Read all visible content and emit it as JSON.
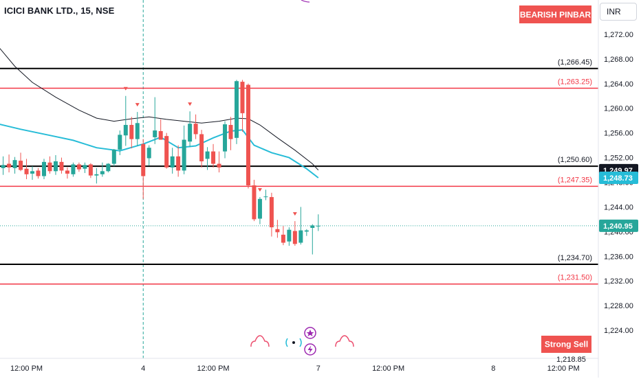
{
  "header": {
    "symbol": "ICICI BANK LTD., 15, NSE",
    "currency": "INR"
  },
  "signals": {
    "bearish_pinbar": "BEARISH PINBAR",
    "strong_sell": "Strong Sell"
  },
  "colors": {
    "up": "#26a69a",
    "down": "#ef5350",
    "fast_ma": "#26bcd7",
    "slow_ma": "#131722",
    "support_line": "#000000",
    "resistance_line": "#f23645",
    "marker_pink": "#ec4f6f",
    "marker_purple": "#9c27b0"
  },
  "chart_data": {
    "type": "candlestick",
    "title": "ICICI BANK LTD., 15, NSE",
    "ylim": [
      1218,
      1276
    ],
    "y_ticks": [
      "1,224.00",
      "1,228.00",
      "1,232.00",
      "1,236.00",
      "1,240.00",
      "1,244.00",
      "1,248.00",
      "1,252.00",
      "1,256.00",
      "1,260.00",
      "1,264.00",
      "1,268.00",
      "1,272.00"
    ],
    "bottom_partial_tick": "1,218.85",
    "x_ticks": [
      {
        "label": "12:00 PM",
        "bar": 4
      },
      {
        "label": "4",
        "bar": 24
      },
      {
        "label": "12:00 PM",
        "bar": 36
      },
      {
        "label": "7",
        "bar": 54
      },
      {
        "label": "12:00 PM",
        "bar": 66
      },
      {
        "label": "8",
        "bar": 84
      },
      {
        "label": "12:00 PM",
        "bar": 96
      }
    ],
    "session_divider_bar": 24,
    "candles": [
      {
        "o": 1250.3,
        "h": 1252.2,
        "l": 1249.2,
        "c": 1250.8
      },
      {
        "o": 1251.0,
        "h": 1252.5,
        "l": 1249.6,
        "c": 1250.4
      },
      {
        "o": 1250.3,
        "h": 1252.1,
        "l": 1249.4,
        "c": 1251.6
      },
      {
        "o": 1251.5,
        "h": 1252.8,
        "l": 1249.8,
        "c": 1250.0
      },
      {
        "o": 1250.2,
        "h": 1251.8,
        "l": 1248.5,
        "c": 1249.3
      },
      {
        "o": 1249.4,
        "h": 1250.6,
        "l": 1248.4,
        "c": 1249.8
      },
      {
        "o": 1249.9,
        "h": 1250.3,
        "l": 1248.6,
        "c": 1249.0
      },
      {
        "o": 1249.0,
        "h": 1251.8,
        "l": 1248.5,
        "c": 1251.3
      },
      {
        "o": 1251.2,
        "h": 1252.2,
        "l": 1249.4,
        "c": 1249.8
      },
      {
        "o": 1249.8,
        "h": 1252.4,
        "l": 1249.2,
        "c": 1251.4
      },
      {
        "o": 1251.3,
        "h": 1252.0,
        "l": 1249.4,
        "c": 1249.9
      },
      {
        "o": 1249.9,
        "h": 1250.4,
        "l": 1248.6,
        "c": 1249.4
      },
      {
        "o": 1249.3,
        "h": 1251.2,
        "l": 1248.9,
        "c": 1250.9
      },
      {
        "o": 1250.9,
        "h": 1251.2,
        "l": 1249.7,
        "c": 1250.1
      },
      {
        "o": 1250.2,
        "h": 1251.2,
        "l": 1249.5,
        "c": 1250.8
      },
      {
        "o": 1250.9,
        "h": 1251.1,
        "l": 1248.7,
        "c": 1249.1
      },
      {
        "o": 1249.1,
        "h": 1250.3,
        "l": 1247.8,
        "c": 1249.3
      },
      {
        "o": 1249.3,
        "h": 1251.2,
        "l": 1248.9,
        "c": 1249.8
      },
      {
        "o": 1249.8,
        "h": 1251.1,
        "l": 1249.6,
        "c": 1251.0
      },
      {
        "o": 1251.0,
        "h": 1253.4,
        "l": 1250.6,
        "c": 1253.3
      },
      {
        "o": 1253.3,
        "h": 1256.4,
        "l": 1252.4,
        "c": 1255.7
      },
      {
        "o": 1255.6,
        "h": 1262.0,
        "l": 1253.9,
        "c": 1257.3
      },
      {
        "o": 1257.3,
        "h": 1258.6,
        "l": 1253.5,
        "c": 1255.0
      },
      {
        "o": 1255.0,
        "h": 1259.4,
        "l": 1253.9,
        "c": 1257.6
      },
      {
        "o": 1254.2,
        "h": 1255.0,
        "l": 1245.3,
        "c": 1249.0
      },
      {
        "o": 1251.9,
        "h": 1254.0,
        "l": 1250.7,
        "c": 1253.6
      },
      {
        "o": 1255.3,
        "h": 1261.8,
        "l": 1254.2,
        "c": 1256.4
      },
      {
        "o": 1256.3,
        "h": 1258.2,
        "l": 1254.9,
        "c": 1254.9
      },
      {
        "o": 1255.5,
        "h": 1256.0,
        "l": 1250.2,
        "c": 1250.4
      },
      {
        "o": 1250.4,
        "h": 1253.6,
        "l": 1249.4,
        "c": 1252.2
      },
      {
        "o": 1252.2,
        "h": 1254.0,
        "l": 1248.9,
        "c": 1249.9
      },
      {
        "o": 1249.9,
        "h": 1257.2,
        "l": 1249.3,
        "c": 1254.9
      },
      {
        "o": 1254.6,
        "h": 1259.5,
        "l": 1253.7,
        "c": 1257.5
      },
      {
        "o": 1257.5,
        "h": 1259.0,
        "l": 1255.0,
        "c": 1255.8
      },
      {
        "o": 1255.8,
        "h": 1256.5,
        "l": 1250.4,
        "c": 1251.4
      },
      {
        "o": 1251.8,
        "h": 1253.7,
        "l": 1250.0,
        "c": 1253.0
      },
      {
        "o": 1253.0,
        "h": 1254.2,
        "l": 1250.4,
        "c": 1251.0
      },
      {
        "o": 1251.0,
        "h": 1253.0,
        "l": 1249.6,
        "c": 1250.4
      },
      {
        "o": 1253.0,
        "h": 1257.9,
        "l": 1251.9,
        "c": 1257.4
      },
      {
        "o": 1257.3,
        "h": 1258.6,
        "l": 1253.2,
        "c": 1255.0
      },
      {
        "o": 1255.2,
        "h": 1264.6,
        "l": 1254.2,
        "c": 1264.4
      },
      {
        "o": 1264.3,
        "h": 1264.6,
        "l": 1256.2,
        "c": 1259.2
      },
      {
        "o": 1263.8,
        "h": 1264.0,
        "l": 1247.0,
        "c": 1247.5
      },
      {
        "o": 1247.5,
        "h": 1248.4,
        "l": 1241.7,
        "c": 1242.0
      },
      {
        "o": 1242.1,
        "h": 1245.6,
        "l": 1241.2,
        "c": 1245.3
      },
      {
        "o": 1245.6,
        "h": 1246.8,
        "l": 1245.1,
        "c": 1245.7
      },
      {
        "o": 1245.6,
        "h": 1246.3,
        "l": 1239.2,
        "c": 1240.7
      },
      {
        "o": 1240.4,
        "h": 1241.9,
        "l": 1239.0,
        "c": 1239.9
      },
      {
        "o": 1239.5,
        "h": 1240.9,
        "l": 1237.8,
        "c": 1238.2
      },
      {
        "o": 1238.4,
        "h": 1240.7,
        "l": 1237.7,
        "c": 1240.3
      },
      {
        "o": 1240.1,
        "h": 1241.7,
        "l": 1237.7,
        "c": 1238.0
      },
      {
        "o": 1238.2,
        "h": 1244.0,
        "l": 1237.9,
        "c": 1240.2
      },
      {
        "o": 1240.0,
        "h": 1240.4,
        "l": 1239.3,
        "c": 1240.2
      },
      {
        "o": 1240.6,
        "h": 1241.2,
        "l": 1236.3,
        "c": 1241.0
      },
      {
        "o": 1240.9,
        "h": 1242.8,
        "l": 1240.1,
        "c": 1240.95
      }
    ],
    "fast_ma": [
      {
        "bar": -1,
        "v": 1257.5
      },
      {
        "bar": 3,
        "v": 1256.6
      },
      {
        "bar": 8,
        "v": 1255.6
      },
      {
        "bar": 12,
        "v": 1254.8
      },
      {
        "bar": 16,
        "v": 1253.6
      },
      {
        "bar": 20,
        "v": 1253.1
      },
      {
        "bar": 24,
        "v": 1254.2
      },
      {
        "bar": 27,
        "v": 1255.3
      },
      {
        "bar": 30,
        "v": 1253.6
      },
      {
        "bar": 33,
        "v": 1253.9
      },
      {
        "bar": 36,
        "v": 1255.2
      },
      {
        "bar": 39,
        "v": 1256.3
      },
      {
        "bar": 41,
        "v": 1256.5
      },
      {
        "bar": 43,
        "v": 1254.0
      },
      {
        "bar": 46,
        "v": 1252.8
      },
      {
        "bar": 49,
        "v": 1252.0
      },
      {
        "bar": 52,
        "v": 1250.2
      },
      {
        "bar": 54,
        "v": 1248.73
      }
    ],
    "slow_ma": [
      {
        "bar": -1,
        "v": 1270.2
      },
      {
        "bar": 2,
        "v": 1266.8
      },
      {
        "bar": 5,
        "v": 1264.2
      },
      {
        "bar": 9,
        "v": 1261.8
      },
      {
        "bar": 13,
        "v": 1259.7
      },
      {
        "bar": 16,
        "v": 1258.4
      },
      {
        "bar": 19,
        "v": 1257.9
      },
      {
        "bar": 22,
        "v": 1258.3
      },
      {
        "bar": 25,
        "v": 1258.6
      },
      {
        "bar": 28,
        "v": 1258.2
      },
      {
        "bar": 31,
        "v": 1257.9
      },
      {
        "bar": 34,
        "v": 1257.6
      },
      {
        "bar": 37,
        "v": 1257.9
      },
      {
        "bar": 40,
        "v": 1258.4
      },
      {
        "bar": 42,
        "v": 1258.3
      },
      {
        "bar": 44,
        "v": 1257.3
      },
      {
        "bar": 47,
        "v": 1255.2
      },
      {
        "bar": 50,
        "v": 1253.2
      },
      {
        "bar": 53,
        "v": 1251.0
      },
      {
        "bar": 54,
        "v": 1249.97
      }
    ],
    "levels": [
      {
        "value": 1266.45,
        "label": "(1,266.45)",
        "kind": "support"
      },
      {
        "value": 1263.25,
        "label": "(1,263.25)",
        "kind": "resistance"
      },
      {
        "value": 1250.6,
        "label": "(1,250.60)",
        "kind": "support"
      },
      {
        "value": 1247.35,
        "label": "(1,247.35)",
        "kind": "resistance"
      },
      {
        "value": 1234.7,
        "label": "(1,234.70)",
        "kind": "support"
      },
      {
        "value": 1231.5,
        "label": "(1,231.50)",
        "kind": "resistance"
      }
    ],
    "price_badges": [
      {
        "value": 1249.97,
        "label": "1,249.97",
        "role": "slow_ma"
      },
      {
        "value": 1248.73,
        "label": "1,248.73",
        "role": "fast_ma"
      },
      {
        "value": 1240.95,
        "label": "1,240.95",
        "role": "last_price"
      }
    ],
    "last_price": 1240.95,
    "pinbar_marker_bars": [
      21,
      23,
      32,
      44,
      50
    ]
  }
}
